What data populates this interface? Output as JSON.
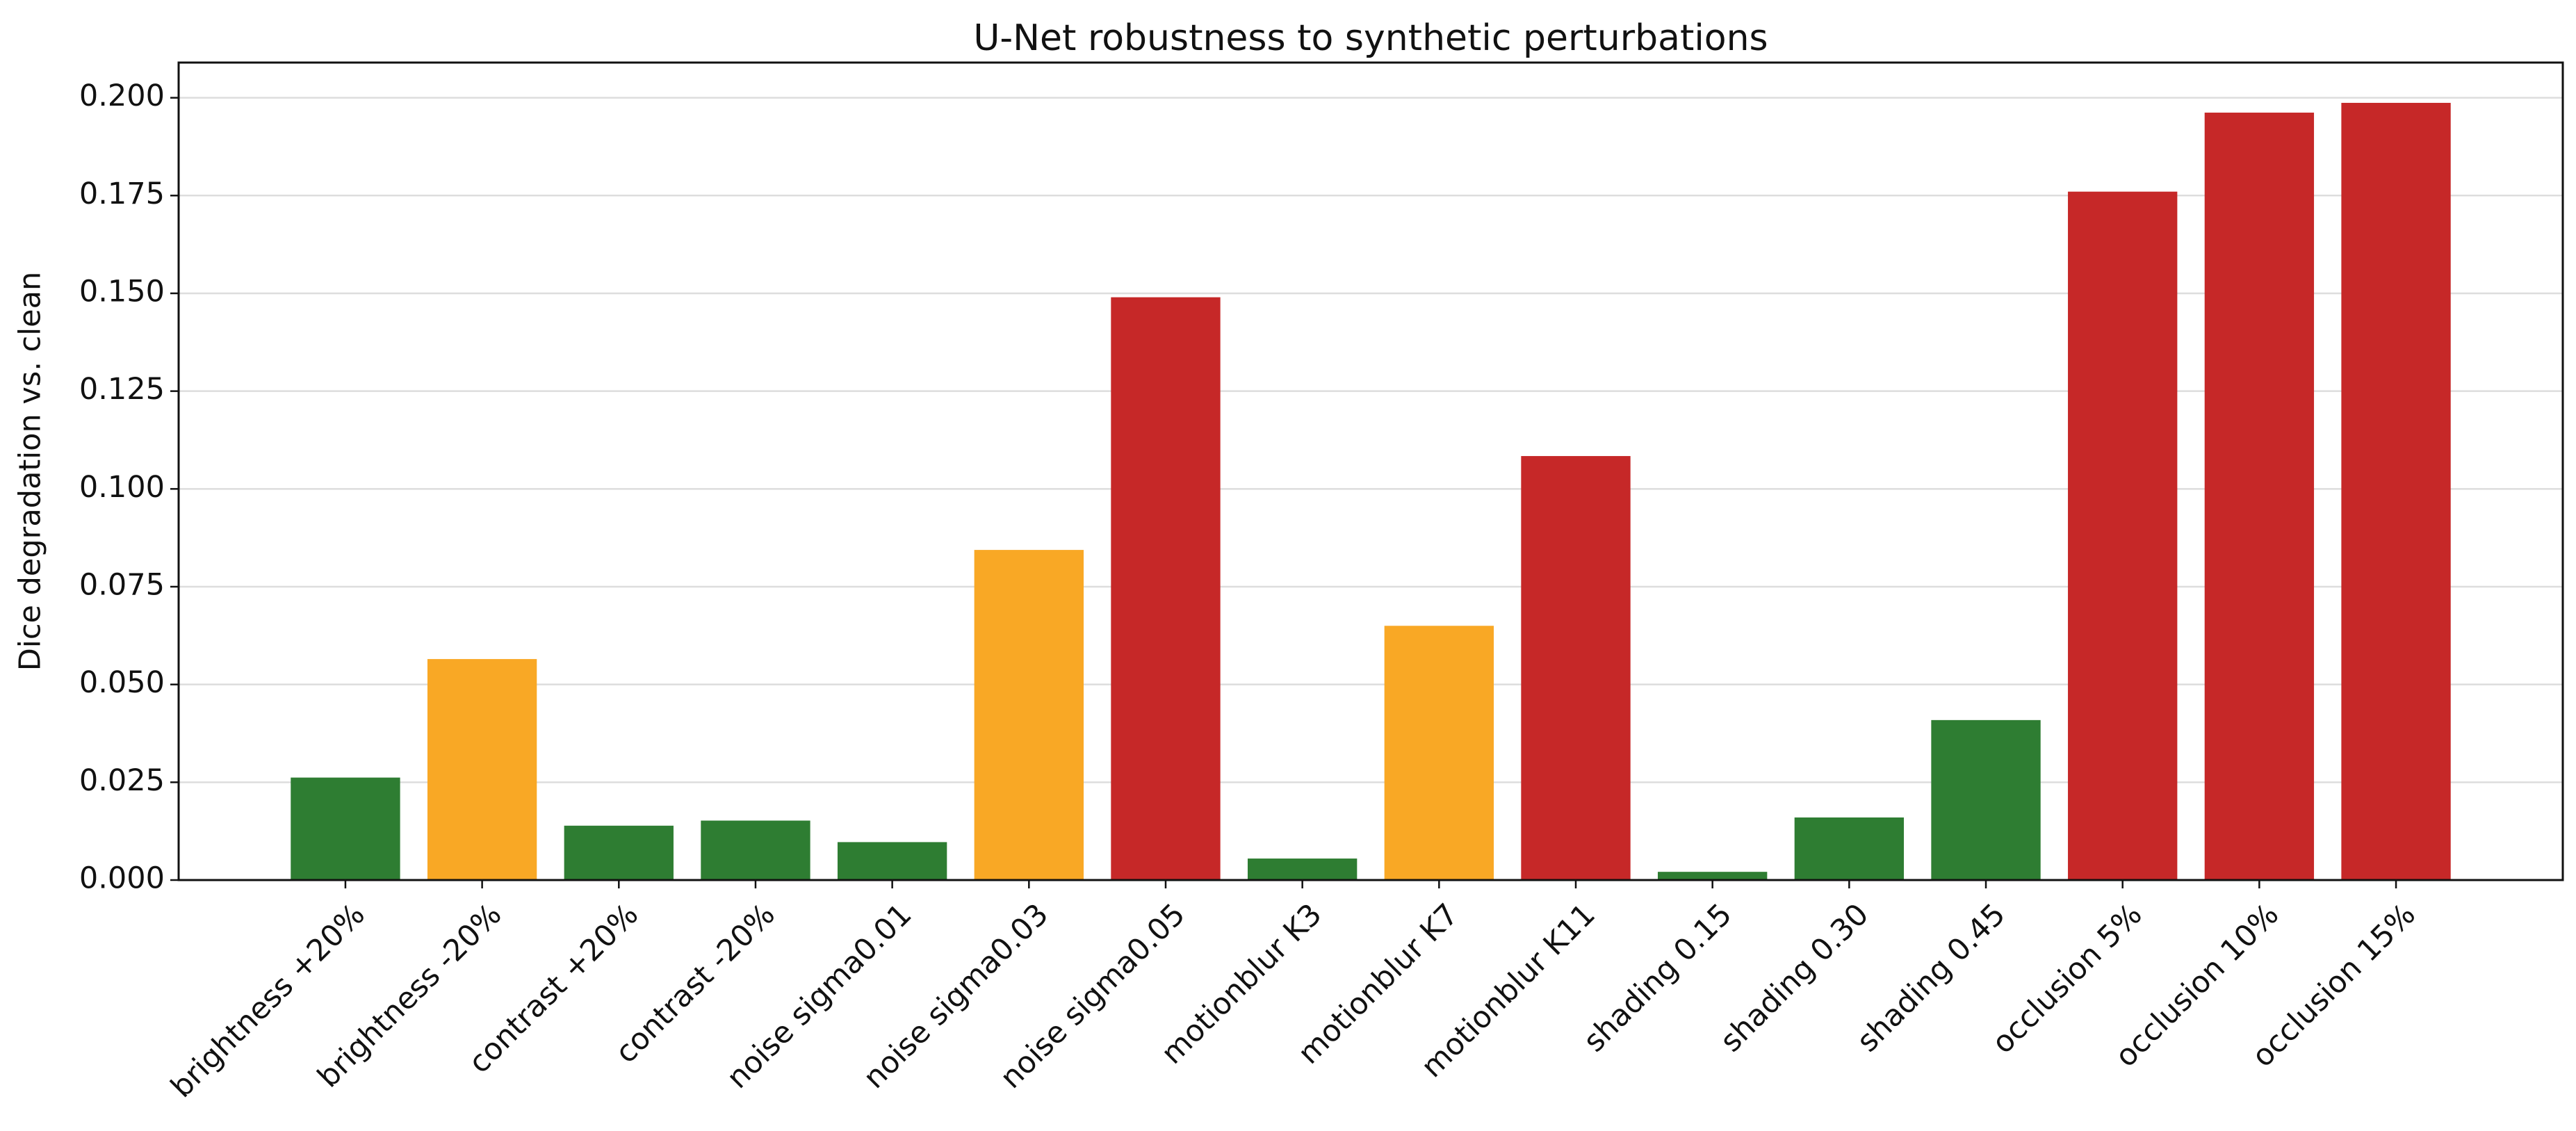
{
  "chart_data": {
    "type": "bar",
    "title": "U-Net robustness to synthetic perturbations",
    "y_label": "Dice degradation vs. clean",
    "categories": [
      "brightness +20%",
      "brightness -20%",
      "contrast +20%",
      "contrast -20%",
      "noise sigma0.01",
      "noise sigma0.03",
      "noise sigma0.05",
      "motionblur K3",
      "motionblur K7",
      "motionblur K11",
      "shading 0.15",
      "shading 0.30",
      "shading 0.45",
      "occlusion 5%",
      "occlusion 10%",
      "occlusion 15%"
    ],
    "values": [
      0.0262,
      0.0565,
      0.0139,
      0.0152,
      0.0097,
      0.0844,
      0.149,
      0.0055,
      0.065,
      0.1084,
      0.0021,
      0.016,
      0.0409,
      0.176,
      0.1962,
      0.1987
    ],
    "colors": [
      "#2e7d32",
      "#f9a825",
      "#2e7d32",
      "#2e7d32",
      "#2e7d32",
      "#f9a825",
      "#c62828",
      "#2e7d32",
      "#f9a825",
      "#c62828",
      "#2e7d32",
      "#2e7d32",
      "#2e7d32",
      "#c62828",
      "#c62828",
      "#c62828"
    ],
    "ylim": [
      0,
      0.209
    ],
    "yticks": [
      {
        "value": 0,
        "label": "0.000"
      },
      {
        "value": 0.025,
        "label": "0.025"
      },
      {
        "value": 0.05,
        "label": "0.050"
      },
      {
        "value": 0.075,
        "label": "0.075"
      },
      {
        "value": 0.1,
        "label": "0.100"
      },
      {
        "value": 0.125,
        "label": "0.125"
      },
      {
        "value": 0.15,
        "label": "0.150"
      },
      {
        "value": 0.175,
        "label": "0.175"
      },
      {
        "value": 0.2,
        "label": "0.200"
      }
    ],
    "grid": true
  }
}
